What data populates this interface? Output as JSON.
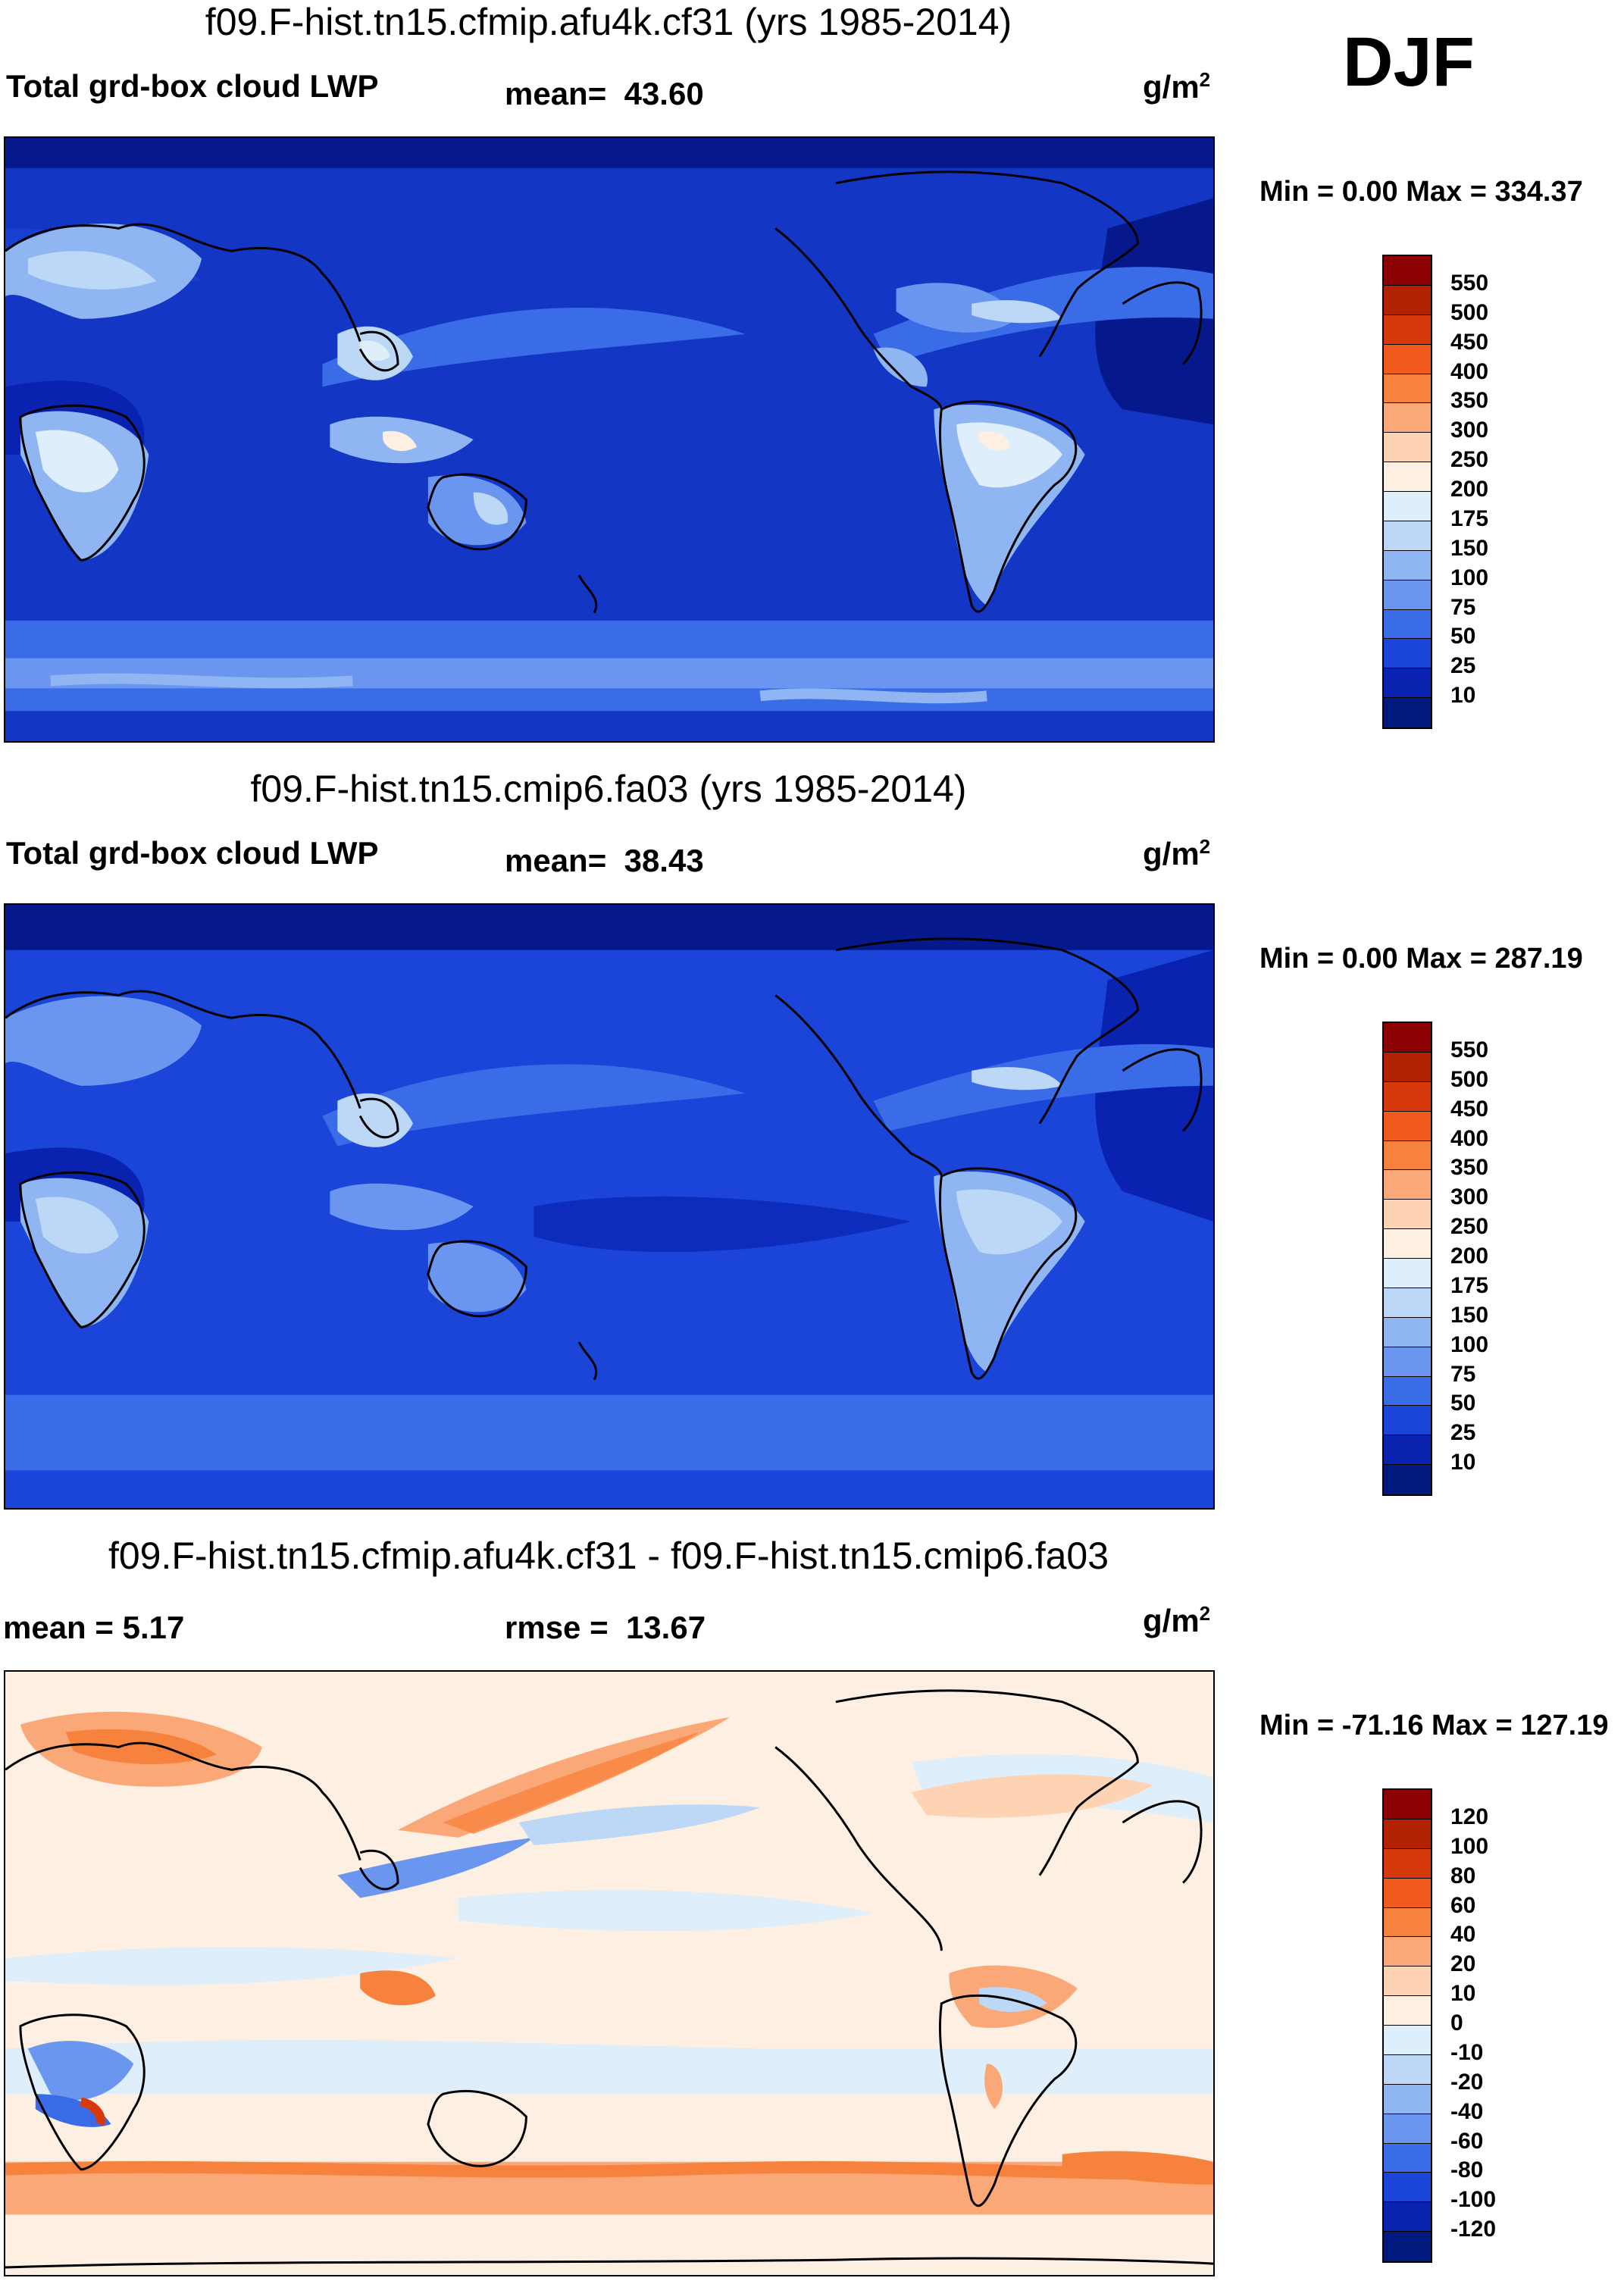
{
  "season": "DJF",
  "units_base": "g/m",
  "units_exp": "2",
  "panels": [
    {
      "title": "f09.F-hist.tn15.cfmip.afu4k.cf31 (yrs 1985-2014)",
      "left_label": "Total grd-box cloud LWP",
      "stat_label": "mean=",
      "stat_value": "43.60",
      "minmax": "Min =    0.00 Max = 334.37",
      "colorbar_levels": [
        "550",
        "500",
        "450",
        "400",
        "350",
        "300",
        "250",
        "200",
        "175",
        "150",
        "100",
        "75",
        "50",
        "25",
        "10"
      ],
      "colorbar_colors": [
        "#8b0000",
        "#b22200",
        "#d63a0a",
        "#f05a1c",
        "#f7823e",
        "#fba878",
        "#fed3b4",
        "#fdf0e2",
        "#deeefb",
        "#bcd8f6",
        "#8fb6f2",
        "#6b96ef",
        "#3a6ce8",
        "#1a45d8",
        "#0a22b0",
        "#001a80"
      ]
    },
    {
      "title": "f09.F-hist.tn15.cmip6.fa03 (yrs 1985-2014)",
      "left_label": "Total grd-box cloud LWP",
      "stat_label": "mean=",
      "stat_value": "38.43",
      "minmax": "Min =    0.00 Max = 287.19",
      "colorbar_levels": [
        "550",
        "500",
        "450",
        "400",
        "350",
        "300",
        "250",
        "200",
        "175",
        "150",
        "100",
        "75",
        "50",
        "25",
        "10"
      ],
      "colorbar_colors": [
        "#8b0000",
        "#b22200",
        "#d63a0a",
        "#f05a1c",
        "#f7823e",
        "#fba878",
        "#fed3b4",
        "#fdf0e2",
        "#deeefb",
        "#bcd8f6",
        "#8fb6f2",
        "#6b96ef",
        "#3a6ce8",
        "#1a45d8",
        "#0a22b0",
        "#001a80"
      ]
    },
    {
      "title": "f09.F-hist.tn15.cfmip.afu4k.cf31 - f09.F-hist.tn15.cmip6.fa03",
      "left_label": "mean =    5.17",
      "stat_label": "rmse =",
      "stat_value": "13.67",
      "minmax": "Min = -71.16 Max = 127.19",
      "colorbar_levels": [
        "120",
        "100",
        "80",
        "60",
        "40",
        "20",
        "10",
        "0",
        "-10",
        "-20",
        "-40",
        "-60",
        "-80",
        "-100",
        "-120"
      ],
      "colorbar_colors": [
        "#8b0000",
        "#b22200",
        "#d63a0a",
        "#f05a1c",
        "#f7823e",
        "#fba878",
        "#fed3b4",
        "#fdf0e2",
        "#deeefb",
        "#bcd8f6",
        "#8fb6f2",
        "#6b96ef",
        "#3a6ce8",
        "#1a45d8",
        "#0a22b0",
        "#001a80"
      ]
    }
  ]
}
